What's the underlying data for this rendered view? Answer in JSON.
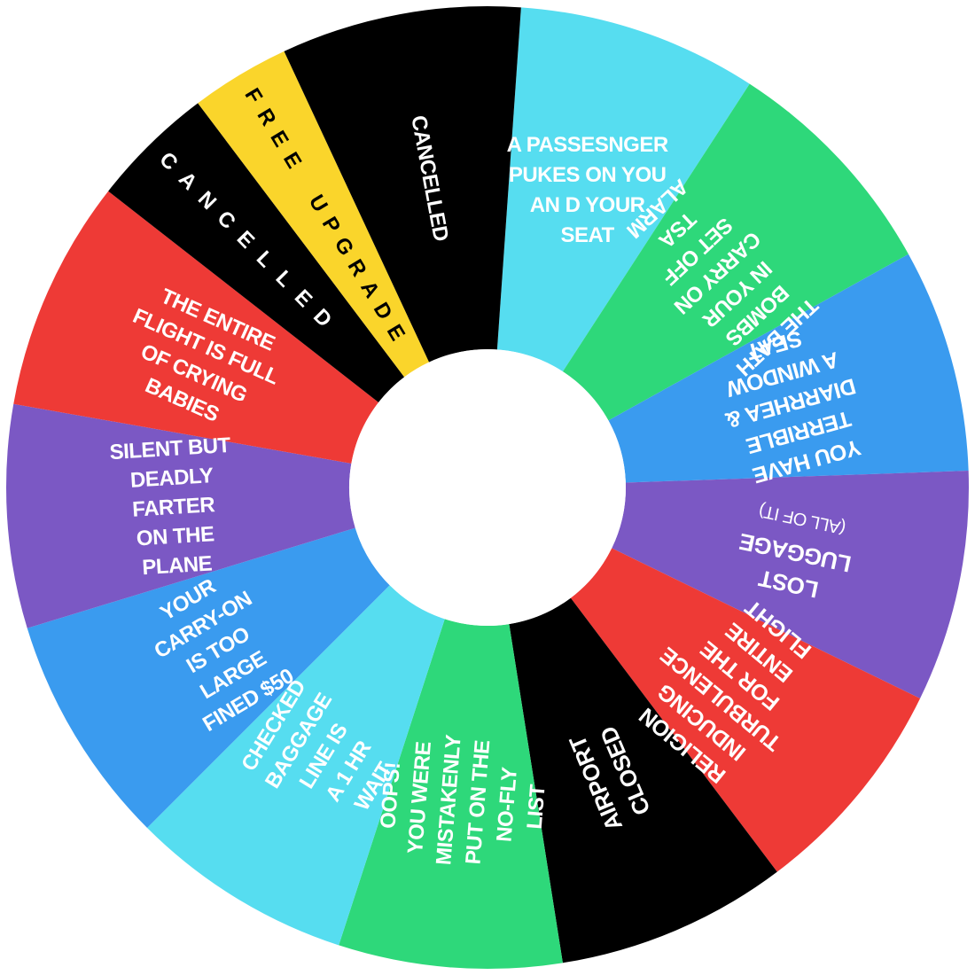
{
  "wheel": {
    "segments": [
      {
        "id": "passenger-pukes",
        "color": "#56DDF0",
        "text_color": "#ffffff",
        "lines": [
          "A PASSESNGER",
          "PUKES ON YOU",
          "AN D YOUR",
          "SEAT"
        ]
      },
      {
        "id": "bath-bombs",
        "color": "#2ED87A",
        "text_color": "#ffffff",
        "lines": [
          "THE BATH",
          "BOMBS",
          "IN YOUR",
          "CARRY ON",
          "SET OFF",
          "TSA",
          "ALARM"
        ]
      },
      {
        "id": "diarrhea",
        "color": "#3A9BEF",
        "text_color": "#ffffff",
        "lines": [
          "YOU HAVE",
          "TERRIBLE",
          "DIARRHEA &",
          "A WINDOW",
          "SEAT"
        ]
      },
      {
        "id": "lost-luggage",
        "color": "#7B58C4",
        "text_color": "#ffffff",
        "lines": [
          "LOST",
          "LUGGAGE"
        ],
        "sub": "(ALL OF IT)"
      },
      {
        "id": "turbulence",
        "color": "#EE3A36",
        "text_color": "#ffffff",
        "lines": [
          "RELIGION",
          "INDUCING",
          "TURBULENCE",
          "FOR THE",
          "ENTIRE",
          "FLIGHT"
        ]
      },
      {
        "id": "airport-closed",
        "color": "#000000",
        "text_color": "#ffffff",
        "lines": [
          "AIRPORT",
          "CLOSED"
        ]
      },
      {
        "id": "no-fly-list",
        "color": "#2ED87A",
        "text_color": "#ffffff",
        "lines": [
          "OOPS!",
          "YOU WERE",
          "MISTAKENLY",
          "PUT ON THE",
          "NO-FLY",
          "LIST"
        ]
      },
      {
        "id": "checked-baggage",
        "color": "#56DDF0",
        "text_color": "#ffffff",
        "lines": [
          "CHECKED",
          "BAGGAGE",
          "LINE IS",
          "A 1 HR",
          "WAIT"
        ]
      },
      {
        "id": "carry-on-large",
        "color": "#3A9BEF",
        "text_color": "#ffffff",
        "lines": [
          "YOUR",
          "CARRY-ON",
          "IS TOO",
          "LARGE"
        ],
        "sub": "FINED $50"
      },
      {
        "id": "silent-farter",
        "color": "#7B58C4",
        "text_color": "#ffffff",
        "lines": [
          "SILENT BUT",
          "DEADLY",
          "FARTER",
          "ON THE",
          "PLANE"
        ]
      },
      {
        "id": "crying-babies",
        "color": "#EE3A36",
        "text_color": "#ffffff",
        "lines": [
          "THE ENTIRE",
          "FLIGHT IS FULL",
          "OF CRYING",
          "BABIES"
        ]
      },
      {
        "id": "cancelled-1",
        "color": "#000000",
        "text_color": "#ffffff",
        "lines": [
          "CANCELLED"
        ]
      },
      {
        "id": "free-upgrade",
        "color": "#FAD52B",
        "text_color": "#000000",
        "lines": [
          "FREE UPGRADE"
        ]
      },
      {
        "id": "cancelled-2",
        "color": "#000000",
        "text_color": "#ffffff",
        "lines": [
          "CANCELLED"
        ]
      }
    ]
  }
}
